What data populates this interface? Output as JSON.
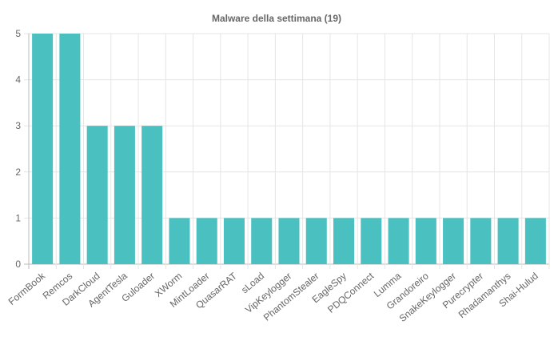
{
  "chart_data": {
    "type": "bar",
    "title": "Malware della settimana (19)",
    "xlabel": "",
    "ylabel": "",
    "ylim": [
      0,
      5
    ],
    "yticks": [
      0,
      1,
      2,
      3,
      4,
      5
    ],
    "grid": true,
    "legend": "none",
    "bar_color": "#4bc0c0",
    "categories": [
      "FormBook",
      "Remcos",
      "DarkCloud",
      "AgentTesla",
      "Guloader",
      "XWorm",
      "MintLoader",
      "QuasarRAT",
      "sLoad",
      "VipKeylogger",
      "PhantomStealer",
      "EagleSpy",
      "PDQConnect",
      "Lumma",
      "Grandoreiro",
      "SnakeKeylogger",
      "Purecrypter",
      "Rhadamanthys",
      "Shai-Hulud"
    ],
    "values": [
      5,
      5,
      3,
      3,
      3,
      1,
      1,
      1,
      1,
      1,
      1,
      1,
      1,
      1,
      1,
      1,
      1,
      1,
      1
    ]
  }
}
